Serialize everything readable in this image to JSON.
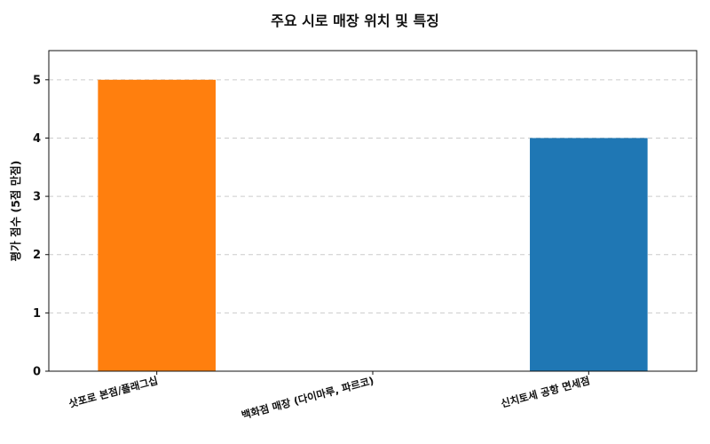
{
  "chart_data": {
    "type": "bar",
    "title": "주요 시로 매장 위치 및 특징",
    "xlabel": "",
    "ylabel": "평가 점수 (5점 만점)",
    "categories": [
      "삿포로 본점/플래그십",
      "백화점 매장 (다이마루, 파르코)",
      "신치토세 공항 면세점"
    ],
    "values": [
      5,
      0,
      4
    ],
    "colors": [
      "#ff7f0e",
      "#1f77b4",
      "#1f77b4"
    ],
    "ylim": [
      0,
      5.5
    ],
    "yticks": [
      0,
      1,
      2,
      3,
      4,
      5
    ],
    "grid": "y-dashed",
    "legend": "none"
  }
}
